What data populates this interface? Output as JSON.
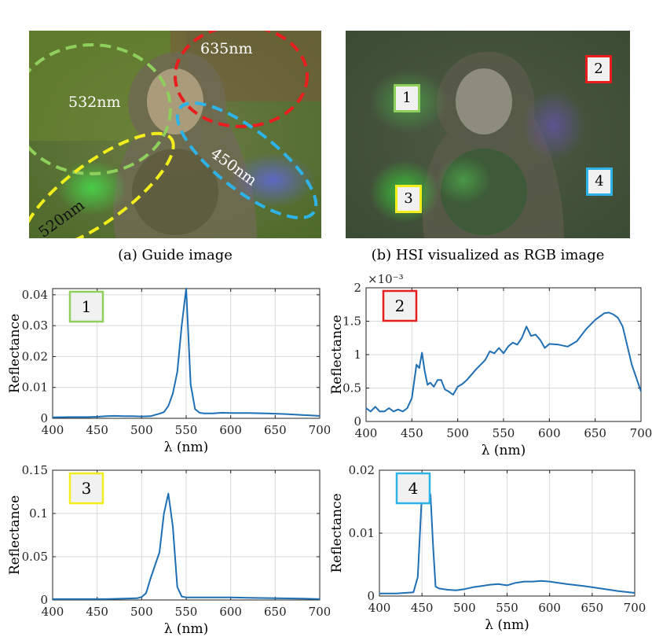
{
  "figure": {
    "caption_a": "(a) Guide image",
    "caption_b": "(b) HSI visualized as RGB image",
    "guide_labels": [
      "635nm",
      "532nm",
      "450nm",
      "520nm"
    ],
    "guide_colors": {
      "red": "#e81e1e",
      "green": "#8fcf5b",
      "cyan": "#2eb3e8",
      "yellow": "#f2ee1c"
    },
    "hsi_markers": [
      {
        "label": "1",
        "color": "#8fcf5b"
      },
      {
        "label": "2",
        "color": "#e81e1e"
      },
      {
        "label": "3",
        "color": "#f2ee1c"
      },
      {
        "label": "4",
        "color": "#2eb3e8"
      }
    ]
  },
  "chart_data": [
    {
      "type": "line",
      "id": "plot-1",
      "badge": "1",
      "badge_color": "#8fcf5b",
      "xlabel": "λ (nm)",
      "ylabel": "Reflectance",
      "xlim": [
        400,
        700
      ],
      "ylim": [
        0,
        0.042
      ],
      "xticks": [
        "400",
        "450",
        "500",
        "550",
        "600",
        "650",
        "700"
      ],
      "yticks": [
        0,
        0.01,
        0.02,
        0.03,
        0.04
      ],
      "ytick_labels": [
        "0",
        "0.01",
        "0.02",
        "0.03",
        "0.04"
      ],
      "exponent_label": "",
      "grid": true,
      "series": [
        {
          "color": "#1f6fb5",
          "x": [
            400,
            420,
            440,
            450,
            460,
            470,
            480,
            490,
            500,
            510,
            520,
            525,
            530,
            535,
            540,
            545,
            550,
            555,
            560,
            565,
            570,
            580,
            590,
            600,
            620,
            640,
            660,
            680,
            700
          ],
          "y": [
            0.0003,
            0.0004,
            0.0004,
            0.0005,
            0.0007,
            0.0008,
            0.0007,
            0.0007,
            0.0006,
            0.0007,
            0.0015,
            0.002,
            0.004,
            0.008,
            0.015,
            0.03,
            0.042,
            0.011,
            0.003,
            0.0018,
            0.0016,
            0.0016,
            0.0018,
            0.0017,
            0.0017,
            0.0016,
            0.0014,
            0.0011,
            0.0008
          ]
        }
      ]
    },
    {
      "type": "line",
      "id": "plot-2",
      "badge": "2",
      "badge_color": "#e81e1e",
      "xlabel": "λ (nm)",
      "ylabel": "Reflectance",
      "xlim": [
        400,
        700
      ],
      "ylim": [
        0,
        2
      ],
      "xticks": [
        "400",
        "450",
        "500",
        "550",
        "600",
        "650",
        "700"
      ],
      "yticks": [
        0,
        0.5,
        1,
        1.5,
        2
      ],
      "ytick_labels": [
        "0",
        "0.5",
        "1",
        "1.5",
        "2"
      ],
      "exponent_label": "×10⁻³",
      "grid": true,
      "series": [
        {
          "color": "#1f6fb5",
          "x": [
            400,
            405,
            410,
            415,
            420,
            425,
            430,
            435,
            440,
            445,
            450,
            455,
            458,
            461,
            464,
            467,
            470,
            474,
            478,
            482,
            486,
            490,
            495,
            500,
            505,
            510,
            520,
            530,
            535,
            540,
            545,
            550,
            555,
            560,
            565,
            570,
            575,
            580,
            585,
            590,
            595,
            600,
            610,
            620,
            630,
            640,
            650,
            660,
            665,
            670,
            675,
            680,
            690,
            700
          ],
          "y": [
            0.2,
            0.15,
            0.22,
            0.15,
            0.15,
            0.2,
            0.15,
            0.18,
            0.15,
            0.2,
            0.35,
            0.85,
            0.8,
            1.03,
            0.75,
            0.55,
            0.58,
            0.52,
            0.62,
            0.62,
            0.48,
            0.45,
            0.4,
            0.52,
            0.56,
            0.62,
            0.78,
            0.92,
            1.05,
            1.02,
            1.1,
            1.02,
            1.12,
            1.18,
            1.15,
            1.25,
            1.42,
            1.28,
            1.3,
            1.22,
            1.1,
            1.16,
            1.15,
            1.12,
            1.2,
            1.38,
            1.52,
            1.62,
            1.63,
            1.6,
            1.55,
            1.42,
            0.85,
            0.45
          ]
        }
      ]
    },
    {
      "type": "line",
      "id": "plot-3",
      "badge": "3",
      "badge_color": "#f2ee1c",
      "xlabel": "λ (nm)",
      "ylabel": "Reflectance",
      "xlim": [
        400,
        700
      ],
      "ylim": [
        0,
        0.15
      ],
      "xticks": [
        "400",
        "450",
        "500",
        "550",
        "600",
        "650",
        "700"
      ],
      "yticks": [
        0,
        0.05,
        0.1,
        0.15
      ],
      "ytick_labels": [
        "0",
        "0.05",
        "0.1",
        "0.15"
      ],
      "exponent_label": "",
      "grid": true,
      "series": [
        {
          "color": "#1f6fb5",
          "x": [
            400,
            420,
            440,
            460,
            480,
            495,
            500,
            505,
            510,
            515,
            520,
            525,
            530,
            535,
            540,
            545,
            550,
            560,
            580,
            600,
            620,
            650,
            680,
            700
          ],
          "y": [
            0.001,
            0.001,
            0.001,
            0.001,
            0.0015,
            0.002,
            0.0035,
            0.008,
            0.025,
            0.04,
            0.055,
            0.1,
            0.123,
            0.085,
            0.015,
            0.004,
            0.003,
            0.003,
            0.003,
            0.003,
            0.0025,
            0.002,
            0.0015,
            0.001
          ]
        }
      ]
    },
    {
      "type": "line",
      "id": "plot-4",
      "badge": "4",
      "badge_color": "#2eb3e8",
      "xlabel": "λ (nm)",
      "ylabel": "Reflectance",
      "xlim": [
        400,
        700
      ],
      "ylim": [
        0,
        0.02
      ],
      "xticks": [
        "400",
        "450",
        "500",
        "550",
        "600",
        "650",
        "700"
      ],
      "yticks": [
        0,
        0.01,
        0.02
      ],
      "ytick_labels": [
        "0",
        "0.01",
        "0.02"
      ],
      "exponent_label": "",
      "grid": true,
      "series": [
        {
          "color": "#1f6fb5",
          "x": [
            400,
            410,
            420,
            430,
            440,
            445,
            450,
            453,
            456,
            460,
            463,
            466,
            470,
            480,
            490,
            500,
            510,
            520,
            530,
            540,
            550,
            560,
            570,
            580,
            590,
            600,
            620,
            640,
            660,
            680,
            700
          ],
          "y": [
            0.0004,
            0.0004,
            0.0004,
            0.0005,
            0.0006,
            0.003,
            0.0165,
            0.0175,
            0.0162,
            0.0162,
            0.008,
            0.0015,
            0.0012,
            0.001,
            0.0009,
            0.0011,
            0.0014,
            0.0016,
            0.0018,
            0.0019,
            0.0017,
            0.0021,
            0.0023,
            0.0023,
            0.0024,
            0.0023,
            0.0019,
            0.0016,
            0.0012,
            0.0008,
            0.0005
          ]
        }
      ]
    }
  ]
}
